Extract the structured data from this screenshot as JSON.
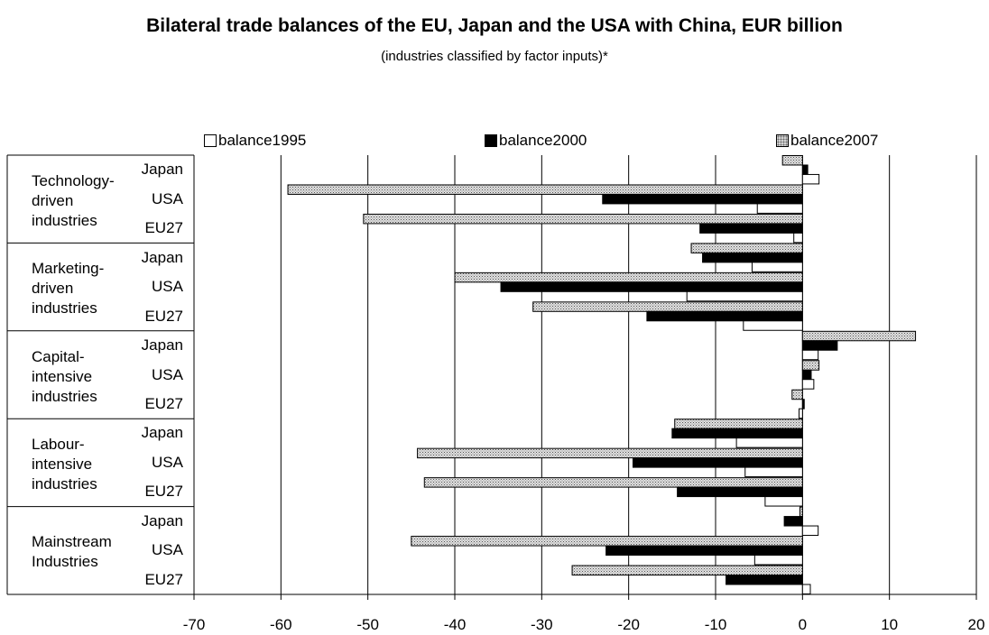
{
  "title": "Bilateral trade balances of the EU, Japan and the USA with China, EUR billion",
  "subtitle": "(industries classified by factor inputs)*",
  "legend": [
    {
      "label": "balance1995",
      "style": "white"
    },
    {
      "label": "balance2000",
      "style": "black"
    },
    {
      "label": "balance2007",
      "style": "dotted"
    }
  ],
  "chart_data": {
    "type": "bar",
    "orientation": "horizontal",
    "title": "Bilateral trade balances of the EU, Japan and the USA with China, EUR billion",
    "subtitle": "(industries classified by factor inputs)*",
    "xlim": [
      -70,
      20
    ],
    "xticks": [
      "-70",
      "-60",
      "-50",
      "-40",
      "-30",
      "-20",
      "-10",
      "0",
      "10",
      "20"
    ],
    "grid": "vertical",
    "legend_position": "top",
    "groups": [
      {
        "label": [
          "Technology-",
          "driven",
          "industries"
        ],
        "countries": [
          "Japan",
          "USA",
          "EU27"
        ]
      },
      {
        "label": [
          "Marketing-",
          "driven",
          "industries"
        ],
        "countries": [
          "Japan",
          "USA",
          "EU27"
        ]
      },
      {
        "label": [
          "Capital-",
          "intensive",
          "industries"
        ],
        "countries": [
          "Japan",
          "USA",
          "EU27"
        ]
      },
      {
        "label": [
          "Labour-",
          "intensive",
          "industries"
        ],
        "countries": [
          "Japan",
          "USA",
          "EU27"
        ]
      },
      {
        "label": [
          "Mainstream",
          "Industries"
        ],
        "countries": [
          "Japan",
          "USA",
          "EU27"
        ]
      }
    ],
    "series": [
      {
        "name": "balance2007",
        "values": [
          -2.3,
          -59.2,
          -50.5,
          -12.8,
          -40.0,
          -31.0,
          13.0,
          1.9,
          -1.2,
          -14.7,
          -44.3,
          -43.5,
          -0.3,
          -45.0,
          -26.5
        ]
      },
      {
        "name": "balance2000",
        "values": [
          0.6,
          -23.0,
          -11.8,
          -11.5,
          -34.7,
          -17.9,
          4.0,
          1.0,
          0.2,
          -15.0,
          -19.5,
          -14.4,
          -2.1,
          -22.6,
          -8.8
        ]
      },
      {
        "name": "balance1995",
        "values": [
          1.9,
          -5.2,
          -1.0,
          -5.8,
          -13.3,
          -6.8,
          1.8,
          1.3,
          -0.4,
          -7.6,
          -6.6,
          -4.3,
          1.8,
          -5.5,
          0.9
        ]
      }
    ]
  }
}
